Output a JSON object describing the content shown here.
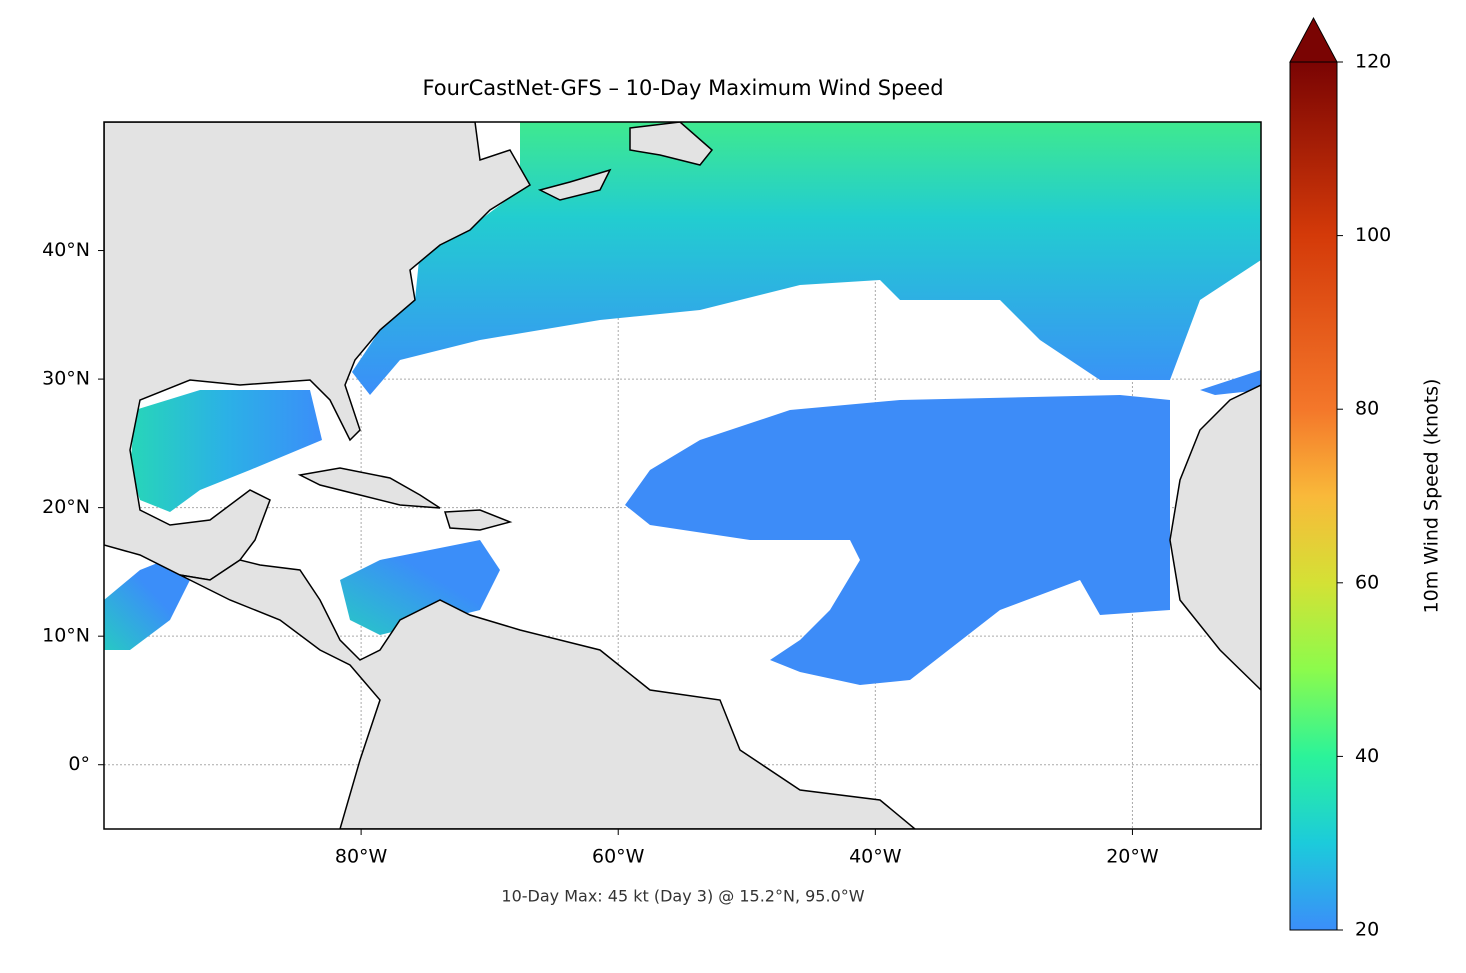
{
  "chart_data": {
    "type": "map",
    "title": "FourCastNet-GFS – 10-Day Maximum Wind Speed",
    "annotation": "10-Day Max: 45 kt (Day 3) @ 15.2°N, 95.0°W",
    "xlim": [
      -100,
      -10
    ],
    "ylim": [
      -5,
      50
    ],
    "xticks": [
      {
        "value": -80,
        "label": "80°W"
      },
      {
        "value": -60,
        "label": "60°W"
      },
      {
        "value": -40,
        "label": "40°W"
      },
      {
        "value": -20,
        "label": "20°W"
      }
    ],
    "yticks": [
      {
        "value": 0,
        "label": "0°"
      },
      {
        "value": 10,
        "label": "10°N"
      },
      {
        "value": 20,
        "label": "20°N"
      },
      {
        "value": 30,
        "label": "30°N"
      },
      {
        "value": 40,
        "label": "40°N"
      }
    ],
    "grid": true,
    "colorbar": {
      "label": "10m Wind Speed (knots)",
      "lim": [
        20,
        120
      ],
      "ticks": [
        20,
        40,
        60,
        80,
        100,
        120
      ],
      "extend": "max",
      "colormap": [
        {
          "value": 20,
          "color": "#3b8ef9"
        },
        {
          "value": 30,
          "color": "#1ccbdb"
        },
        {
          "value": 40,
          "color": "#2bf39a"
        },
        {
          "value": 50,
          "color": "#8cfb4c"
        },
        {
          "value": 60,
          "color": "#d4e135"
        },
        {
          "value": 70,
          "color": "#f9b93a"
        },
        {
          "value": 80,
          "color": "#f4772a"
        },
        {
          "value": 100,
          "color": "#d43a09"
        },
        {
          "value": 120,
          "color": "#7a0403"
        }
      ]
    }
  }
}
